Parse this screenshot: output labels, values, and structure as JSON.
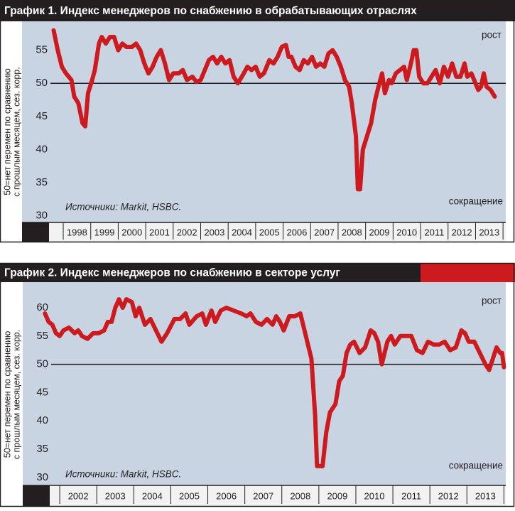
{
  "chart_data": [
    {
      "type": "line",
      "title": "График 1. Индекс менеджеров по снабжению в обрабатывающих отраслях",
      "ylabel": [
        "50=нет перемен по сравнению",
        "с прошлым месяцем, сез. корр."
      ],
      "annotations": [
        "рост",
        "сокращение",
        "Источники: Markit, HSBC."
      ],
      "color": "#cc1a1f",
      "hline": 50,
      "xlim": [
        1996.5,
        2014.1
      ],
      "ylim": [
        29,
        58.5
      ],
      "yticks": [
        30,
        35,
        40,
        45,
        50,
        55
      ],
      "xticks": [
        {
          "value": 1998.5,
          "label": "1998"
        },
        {
          "value": 1999.5,
          "label": "1999"
        },
        {
          "value": 2000.5,
          "label": "2000"
        },
        {
          "value": 2001.5,
          "label": "2001"
        },
        {
          "value": 2002.5,
          "label": "2002"
        },
        {
          "value": 2003.5,
          "label": "2003"
        },
        {
          "value": 2004.5,
          "label": "2004"
        },
        {
          "value": 2005.5,
          "label": "2005"
        },
        {
          "value": 2006.5,
          "label": "2006"
        },
        {
          "value": 2007.5,
          "label": "2007"
        },
        {
          "value": 2008.5,
          "label": "2008"
        },
        {
          "value": 2009.5,
          "label": "2009"
        },
        {
          "value": 2010.5,
          "label": "2010"
        },
        {
          "value": 2011.5,
          "label": "2011"
        },
        {
          "value": 2012.5,
          "label": "2012"
        },
        {
          "value": 2013.5,
          "label": "2013"
        }
      ],
      "x": [
        1997.65,
        1997.8,
        1997.95,
        1998.1,
        1998.2,
        1998.3,
        1998.4,
        1998.55,
        1998.7,
        1998.8,
        1998.9,
        1999.05,
        1999.15,
        1999.3,
        1999.4,
        1999.55,
        1999.7,
        1999.85,
        2000.0,
        2000.15,
        2000.3,
        2000.5,
        2000.65,
        2000.8,
        2000.95,
        2001.1,
        2001.25,
        2001.4,
        2001.55,
        2001.7,
        2001.85,
        2002.0,
        2002.2,
        2002.35,
        2002.5,
        2002.7,
        2002.85,
        2003.0,
        2003.15,
        2003.3,
        2003.45,
        2003.6,
        2003.75,
        2003.9,
        2004.05,
        2004.2,
        2004.35,
        2004.5,
        2004.7,
        2004.85,
        2005.0,
        2005.15,
        2005.3,
        2005.5,
        2005.65,
        2005.8,
        2005.95,
        2006.1,
        2006.2,
        2006.3,
        2006.45,
        2006.6,
        2006.75,
        2006.9,
        2007.05,
        2007.2,
        2007.35,
        2007.5,
        2007.65,
        2007.8,
        2007.95,
        2008.1,
        2008.25,
        2008.4,
        2008.5,
        2008.65,
        2008.72,
        2008.8,
        2008.9,
        2009.05,
        2009.2,
        2009.35,
        2009.5,
        2009.6,
        2009.7,
        2009.85,
        2009.95,
        2010.1,
        2010.25,
        2010.4,
        2010.5,
        2010.65,
        2010.75,
        2010.85,
        2010.95,
        2011.1,
        2011.25,
        2011.4,
        2011.55,
        2011.7,
        2011.85,
        2012.0,
        2012.15,
        2012.3,
        2012.45,
        2012.6,
        2012.7,
        2012.85,
        2012.95,
        2013.1,
        2013.2,
        2013.3,
        2013.4,
        2013.55,
        2013.7
      ],
      "values": [
        58,
        55,
        52.5,
        51.5,
        51,
        50.5,
        48,
        47,
        44,
        43.5,
        48.5,
        50.5,
        52,
        56,
        57,
        56,
        57,
        57,
        55,
        56,
        55.5,
        55.5,
        56,
        55,
        53,
        51.5,
        52.5,
        54,
        55,
        53,
        50.5,
        51.5,
        51.5,
        52,
        50.5,
        51,
        50.2,
        50.5,
        52,
        53.5,
        54,
        53,
        54,
        53,
        53.5,
        51,
        50,
        51,
        52.5,
        52,
        52.5,
        51,
        51.5,
        53.5,
        53,
        54,
        55.5,
        55.8,
        54,
        54,
        52.5,
        52,
        53.5,
        53,
        54,
        52.5,
        53,
        52.5,
        54.5,
        55,
        54,
        52.5,
        50.5,
        49.5,
        47,
        42,
        34,
        34,
        40,
        42,
        44,
        47.5,
        50,
        51.5,
        48.5,
        50.5,
        50,
        51.5,
        52,
        52.5,
        50.5,
        53,
        55,
        55,
        51,
        50,
        50,
        51,
        52,
        50,
        52.5,
        51,
        53,
        51,
        51,
        53,
        51,
        51.5,
        50.5,
        49,
        49.5,
        51.5,
        49.5,
        49,
        48
      ]
    },
    {
      "type": "line",
      "title": "График 2. Индекс менеджеров по снабжению в секторе услуг",
      "ylabel": [
        "50=нет перемен по сравнению",
        "с прошлым месяцем, сез. корр."
      ],
      "annotations": [
        "рост",
        "сокращение",
        "Источники: Markit, HSBC."
      ],
      "color": "#cc1a1f",
      "hline": 50,
      "xlim": [
        2001,
        2014.05
      ],
      "ylim": [
        28.6,
        64.4
      ],
      "yticks": [
        30,
        35,
        40,
        45,
        50,
        55,
        60
      ],
      "xticks": [
        {
          "value": 2002.5,
          "label": "2002"
        },
        {
          "value": 2003.5,
          "label": "2003"
        },
        {
          "value": 2004.5,
          "label": "2004"
        },
        {
          "value": 2005.5,
          "label": "2005"
        },
        {
          "value": 2006.5,
          "label": "2006"
        },
        {
          "value": 2007.5,
          "label": "2007"
        },
        {
          "value": 2008.5,
          "label": "2008"
        },
        {
          "value": 2009.5,
          "label": "2009"
        },
        {
          "value": 2010.5,
          "label": "2010"
        },
        {
          "value": 2011.5,
          "label": "2011"
        },
        {
          "value": 2012.5,
          "label": "2012"
        },
        {
          "value": 2013.5,
          "label": "2013"
        }
      ],
      "x": [
        2001.6,
        2001.7,
        2001.8,
        2001.9,
        2002.0,
        2002.1,
        2002.25,
        2002.4,
        2002.5,
        2002.6,
        2002.75,
        2002.9,
        2003.05,
        2003.2,
        2003.3,
        2003.4,
        2003.5,
        2003.6,
        2003.7,
        2003.8,
        2003.95,
        2004.05,
        2004.15,
        2004.3,
        2004.45,
        2004.6,
        2004.75,
        2004.9,
        2005.1,
        2005.25,
        2005.4,
        2005.5,
        2005.7,
        2005.85,
        2005.95,
        2006.1,
        2006.2,
        2006.35,
        2006.5,
        2006.7,
        2006.9,
        2007.05,
        2007.15,
        2007.3,
        2007.45,
        2007.6,
        2007.75,
        2007.85,
        2007.95,
        2008.05,
        2008.2,
        2008.35,
        2008.5,
        2008.65,
        2008.8,
        2008.9,
        2008.95,
        2009.1,
        2009.2,
        2009.3,
        2009.45,
        2009.55,
        2009.65,
        2009.75,
        2009.85,
        2009.95,
        2010.1,
        2010.25,
        2010.4,
        2010.5,
        2010.6,
        2010.7,
        2010.85,
        2010.95,
        2011.05,
        2011.2,
        2011.35,
        2011.5,
        2011.65,
        2011.8,
        2011.95,
        2012.1,
        2012.25,
        2012.4,
        2012.55,
        2012.7,
        2012.85,
        2012.95,
        2013.05,
        2013.2,
        2013.35,
        2013.5,
        2013.6,
        2013.7,
        2013.8,
        2013.9,
        2013.95,
        2014.0
      ],
      "values": [
        59,
        57.5,
        57,
        55.5,
        55,
        56,
        56.5,
        55.5,
        56,
        55,
        54.5,
        55.5,
        55.5,
        56,
        57.5,
        57.5,
        60,
        61.5,
        60,
        61.5,
        61,
        58.5,
        60,
        57,
        58,
        56,
        54,
        55.5,
        58,
        58,
        59,
        57,
        58.5,
        59,
        57,
        59.5,
        57.5,
        59.5,
        60,
        59.5,
        59,
        58.5,
        59,
        57.5,
        57,
        58,
        57,
        58.5,
        57.5,
        56,
        58.5,
        58.5,
        59,
        55,
        51,
        41,
        32,
        32,
        38,
        41.5,
        43,
        47,
        48,
        52,
        53.5,
        54,
        52,
        53,
        56,
        55.5,
        54,
        50,
        54,
        55,
        53.5,
        55,
        55,
        55,
        52.5,
        52,
        54,
        53.5,
        53.5,
        54,
        52.5,
        53,
        56,
        55.5,
        54,
        54,
        52,
        50,
        49,
        51,
        53,
        52,
        52,
        49.5
      ]
    }
  ]
}
